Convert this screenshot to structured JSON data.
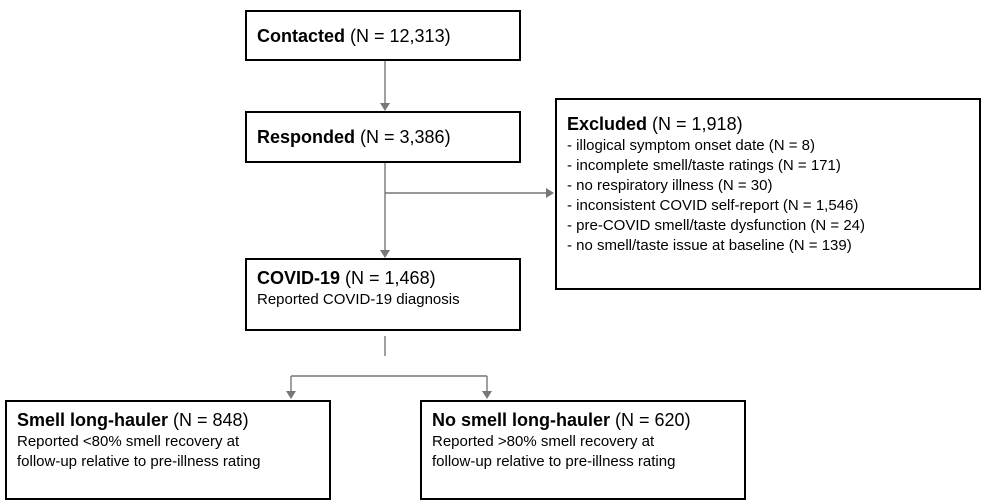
{
  "nodes": [
    {
      "title": "Contacted",
      "count": "(N = 12,313)"
    },
    {
      "title": "Responded",
      "count": "(N = 3,386)"
    },
    {
      "title": "COVID-19",
      "count": "(N = 1,468)",
      "lines": [
        "Reported COVID-19 diagnosis"
      ]
    },
    {
      "title": "Smell long-hauler",
      "count": "(N = 848)",
      "lines": [
        "Reported <80% smell recovery at",
        "follow-up relative to pre-illness rating"
      ]
    },
    {
      "title": "No smell long-hauler",
      "count": "(N = 620)",
      "lines": [
        "Reported >80% smell recovery at",
        "follow-up relative to pre-illness rating"
      ]
    }
  ],
  "excluded": {
    "title": "Excluded",
    "count": "(N = 1,918)",
    "items": [
      "- illogical symptom onset date (N = 8)",
      "- incomplete smell/taste ratings (N = 171)",
      "- no respiratory illness (N = 30)",
      "- inconsistent COVID self-report (N = 1,546)",
      "- pre-COVID smell/taste dysfunction (N = 24)",
      "- no smell/taste issue at baseline (N = 139)"
    ]
  }
}
